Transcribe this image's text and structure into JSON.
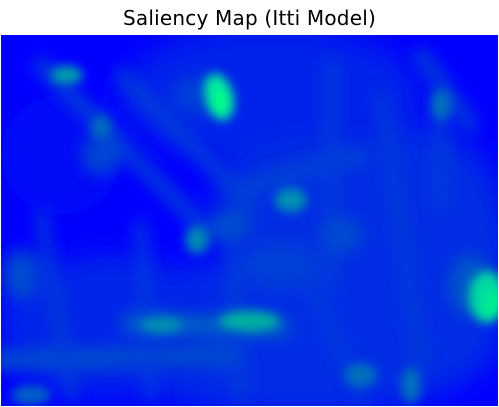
{
  "title": "Saliency Map (Itti Model)",
  "colormap": {
    "name": "winter",
    "low": "#0000ff",
    "high": "#00ff80"
  }
}
